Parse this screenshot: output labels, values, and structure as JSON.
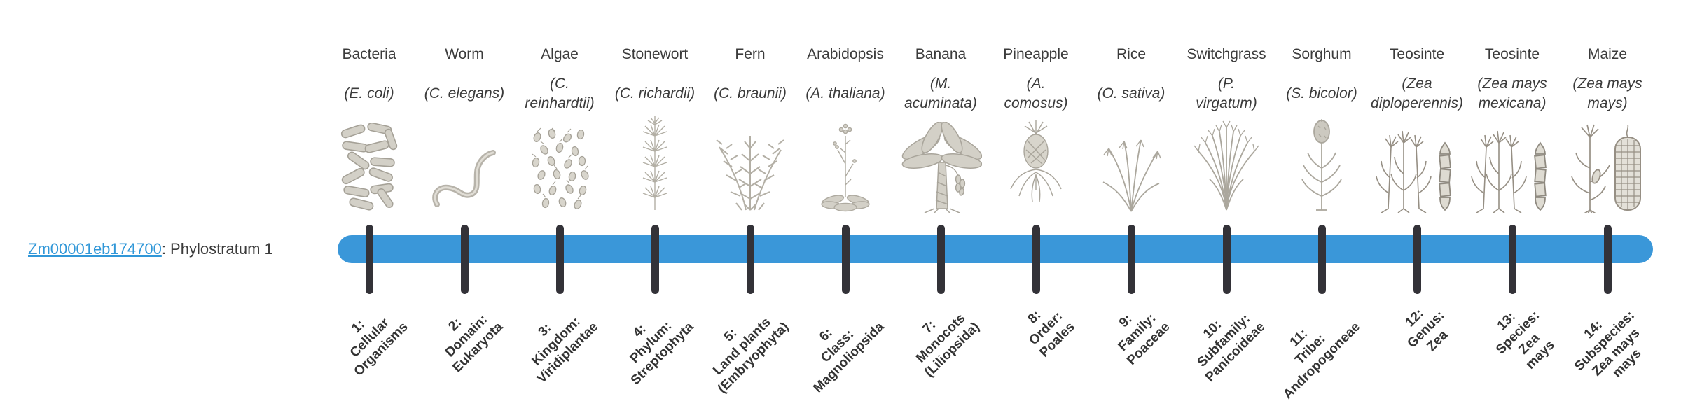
{
  "gene": {
    "id": "Zm00001eb174700",
    "suffix": ": Phylostratum 1"
  },
  "colors": {
    "bar_blue": "#3a97d9",
    "link_blue": "#3097d8",
    "tick_dark": "#333238",
    "text_dark": "#3b3b3b",
    "illustration_gray": "#aba79d"
  },
  "organisms": [
    {
      "common": "Bacteria",
      "species": "(E. coli)",
      "icon": "bacteria-icon",
      "stratum_label": "1:\nCellular\nOrganisms"
    },
    {
      "common": "Worm",
      "species": "(C. elegans)",
      "icon": "worm-icon",
      "stratum_label": "2:\nDomain:\nEukaryota"
    },
    {
      "common": "Algae",
      "species": "(C.\nreinhardtii)",
      "icon": "algae-icon",
      "stratum_label": "3:\nKingdom:\nViridiplantae"
    },
    {
      "common": "Stonewort",
      "species": "(C. richardii)",
      "icon": "stonewort-icon",
      "stratum_label": "4:\nPhylum:\nStreptophyta"
    },
    {
      "common": "Fern",
      "species": "(C. braunii)",
      "icon": "fern-icon",
      "stratum_label": "5:\nLand plants\n(Embryophyta)"
    },
    {
      "common": "Arabidopsis",
      "species": "(A. thaliana)",
      "icon": "arabidopsis-icon",
      "stratum_label": "6:\nClass:\nMagnoliopsida"
    },
    {
      "common": "Banana",
      "species": "(M.\nacuminata)",
      "icon": "banana-icon",
      "stratum_label": "7:\nMonocots\n(Liliopsida)"
    },
    {
      "common": "Pineapple",
      "species": "(A.\ncomosus)",
      "icon": "pineapple-icon",
      "stratum_label": "8:\nOrder:\nPoales"
    },
    {
      "common": "Rice",
      "species": "(O. sativa)",
      "icon": "rice-icon",
      "stratum_label": "9:\nFamily:\nPoaceae"
    },
    {
      "common": "Switchgrass",
      "species": "(P.\nvirgatum)",
      "icon": "switchgrass-icon",
      "stratum_label": "10:\nSubfamily:\nPanicoideae"
    },
    {
      "common": "Sorghum",
      "species": "(S. bicolor)",
      "icon": "sorghum-icon",
      "stratum_label": "11:\nTribe:\nAndropogoneae"
    },
    {
      "common": "Teosinte",
      "species": "(Zea\ndiploperennis)",
      "icon": "teosinte-icon",
      "stratum_label": "12:\nGenus:\nZea"
    },
    {
      "common": "Teosinte",
      "species": "(Zea mays\nmexicana)",
      "icon": "teosinte-icon",
      "stratum_label": "13:\nSpecies:\nZea\nmays"
    },
    {
      "common": "Maize",
      "species": "(Zea mays\nmays)",
      "icon": "maize-icon",
      "stratum_label": "14:\nSubspecies:\nZea mays\nmays"
    }
  ]
}
